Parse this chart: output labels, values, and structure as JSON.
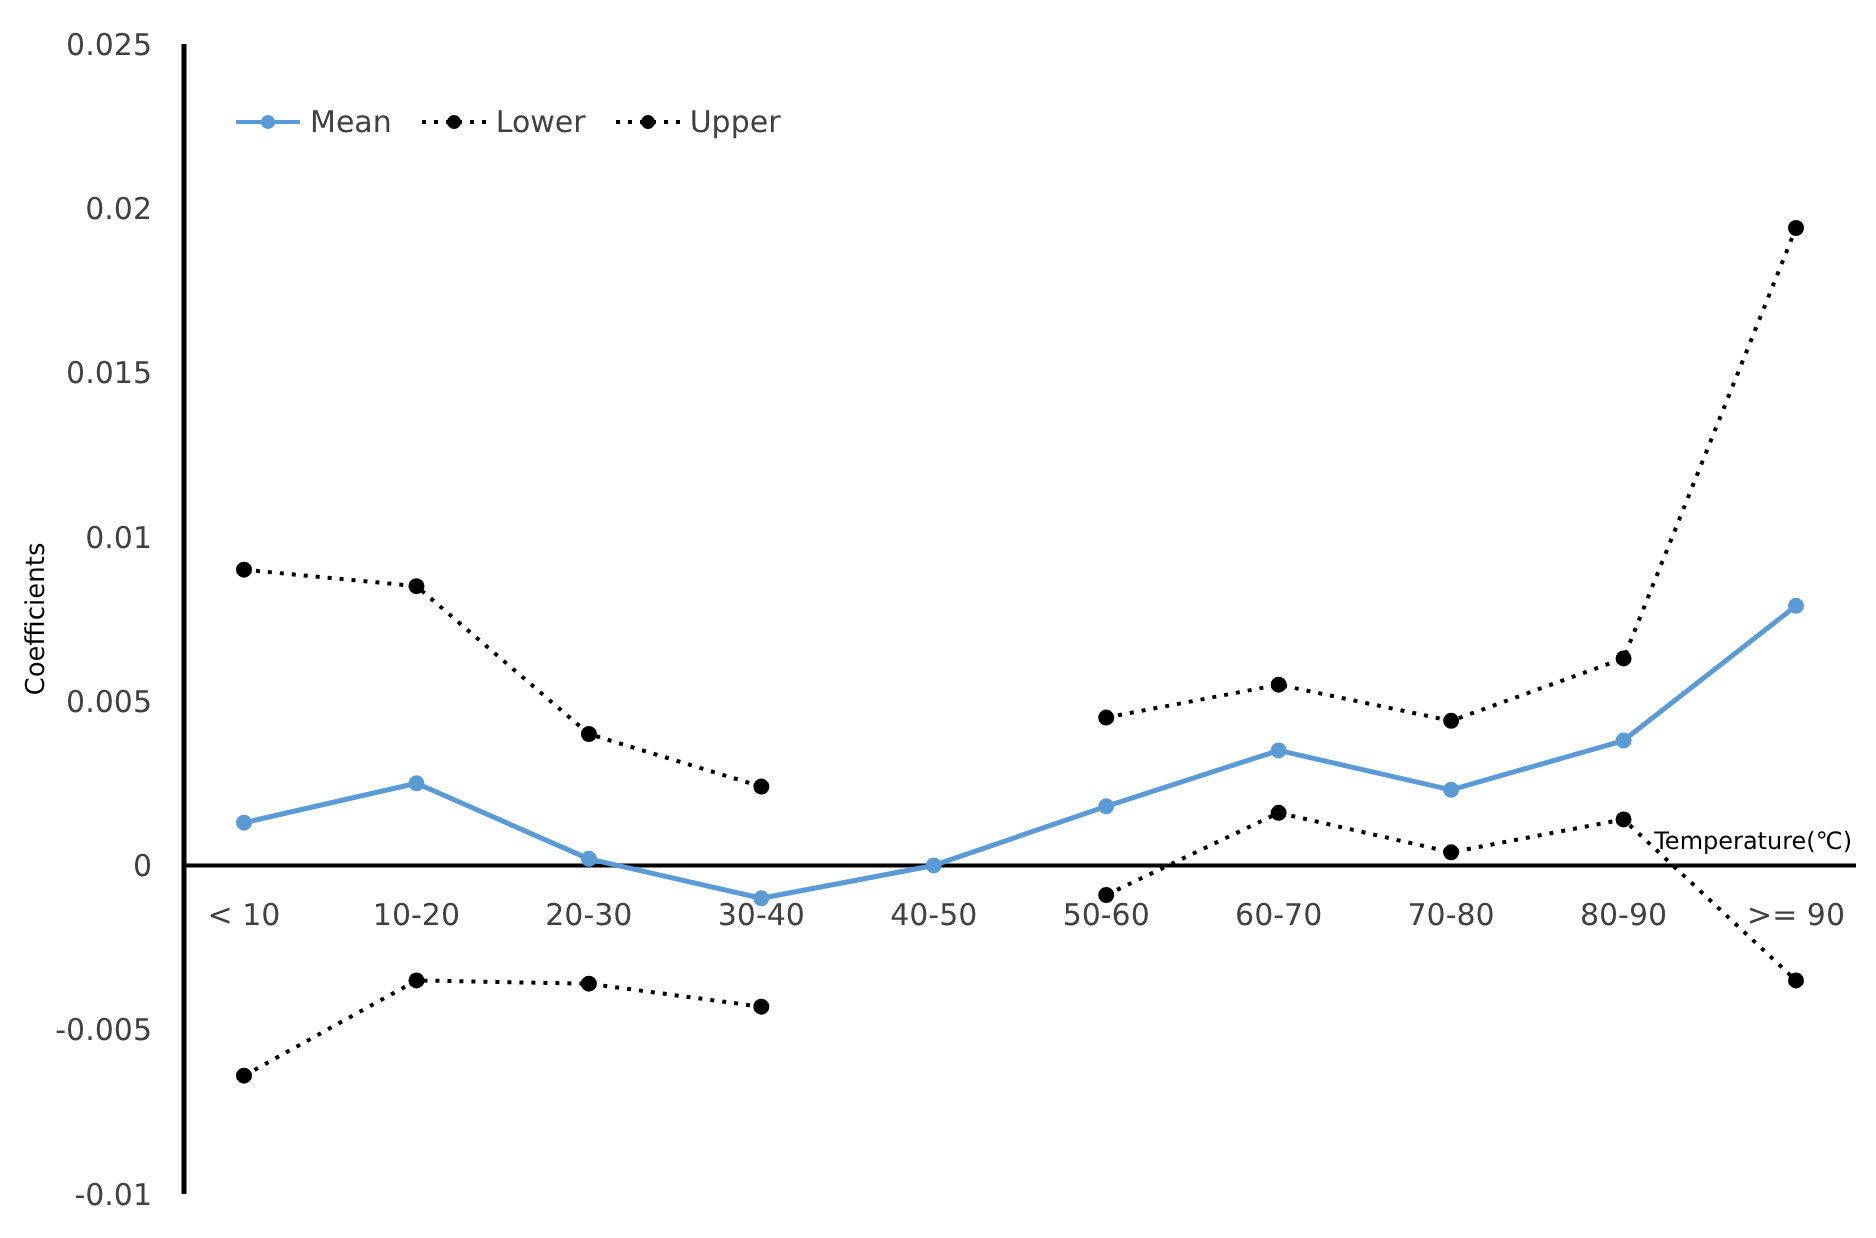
{
  "chart_data": {
    "type": "line",
    "xlabel": "Temperature(℃)",
    "ylabel": "Coefficients",
    "categories": [
      "< 10",
      "10-20",
      "20-30",
      "30-40",
      "40-50",
      "50-60",
      "60-70",
      "70-80",
      "80-90",
      ">= 90"
    ],
    "ylim": [
      -0.01,
      0.025
    ],
    "yticks": [
      -0.01,
      -0.005,
      0,
      0.005,
      0.01,
      0.015,
      0.02,
      0.025
    ],
    "legend": "top left",
    "series": [
      {
        "name": "Mean",
        "color": "#5b9bd5",
        "line_style": "solid",
        "marker": "circle",
        "values": [
          0.0013,
          0.0025,
          0.0002,
          -0.001,
          0,
          0.0018,
          0.0035,
          0.0023,
          0.0038,
          0.0079
        ]
      },
      {
        "name": "Lower",
        "color": "#000000",
        "line_style": "dotted",
        "marker": "circle",
        "values": [
          -0.0064,
          -0.0035,
          -0.0036,
          -0.0043,
          null,
          -0.0009,
          0.0016,
          0.0004,
          0.0014,
          -0.0035
        ]
      },
      {
        "name": "Upper",
        "color": "#000000",
        "line_style": "dotted",
        "marker": "circle",
        "values": [
          0.009,
          0.0085,
          0.004,
          0.0024,
          null,
          0.0045,
          0.0055,
          0.0044,
          0.0063,
          0.0194
        ]
      }
    ]
  }
}
